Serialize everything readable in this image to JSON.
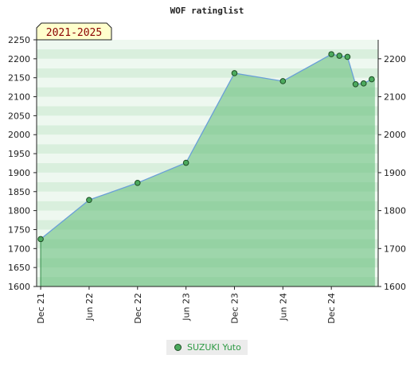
{
  "chart_data": {
    "type": "area",
    "title": "WOF ratinglist",
    "period_label": "2021-2025",
    "ylim": [
      1600,
      2250
    ],
    "y_ticks_left": [
      1600,
      1650,
      1700,
      1750,
      1800,
      1850,
      1900,
      1950,
      2000,
      2050,
      2100,
      2150,
      2200,
      2250
    ],
    "y_ticks_right": [
      1600,
      1700,
      1800,
      1900,
      2000,
      2100,
      2200
    ],
    "x_ticks": [
      {
        "label": "Dec 21",
        "month": 0
      },
      {
        "label": "Jun 22",
        "month": 6
      },
      {
        "label": "Dec 22",
        "month": 12
      },
      {
        "label": "Jun 23",
        "month": 18
      },
      {
        "label": "Dec 23",
        "month": 24
      },
      {
        "label": "Jun 24",
        "month": 30
      },
      {
        "label": "Dec 24",
        "month": 36
      }
    ],
    "xlim_months": [
      -0.5,
      41.8
    ],
    "series": [
      {
        "name": "SUZUKI Yuto",
        "color": "#4caa5e",
        "points": [
          {
            "month": 0,
            "value": 1725
          },
          {
            "month": 6,
            "value": 1828
          },
          {
            "month": 12,
            "value": 1873
          },
          {
            "month": 18,
            "value": 1926
          },
          {
            "month": 24,
            "value": 2162
          },
          {
            "month": 30,
            "value": 2141
          },
          {
            "month": 36,
            "value": 2212
          },
          {
            "month": 37,
            "value": 2208
          },
          {
            "month": 38,
            "value": 2205
          },
          {
            "month": 39,
            "value": 2133
          },
          {
            "month": 40,
            "value": 2135
          },
          {
            "month": 41,
            "value": 2146
          }
        ]
      }
    ]
  }
}
